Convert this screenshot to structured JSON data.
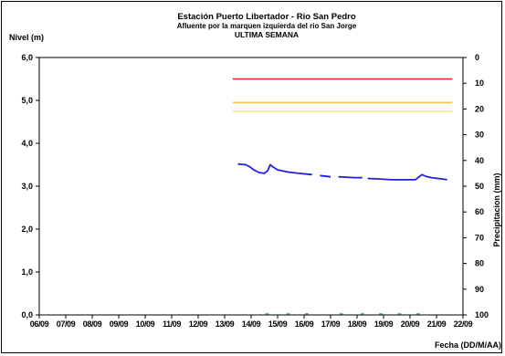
{
  "chart_data": {
    "type": "line",
    "title": "Estación Puerto Libertador - Rio San Pedro",
    "subtitle": "Afluente por la marquen izquierda del rio San Jorge",
    "subtitle2": "ULTIMA SEMANA",
    "ylabel": "Nivel (m)",
    "y2label": "Precipitacion (mm)",
    "xlabel": "Fecha (DD/M/AA)",
    "ylim": [
      0,
      6
    ],
    "y2lim": [
      0,
      100
    ],
    "yticks": [
      "0,0",
      "1,0",
      "2,0",
      "3,0",
      "4,0",
      "5,0",
      "6,0"
    ],
    "y2ticks": [
      "0",
      "10",
      "20",
      "30",
      "40",
      "50",
      "60",
      "70",
      "80",
      "90",
      "100"
    ],
    "xticks": [
      "06/09",
      "07/09",
      "08/09",
      "09/09",
      "10/09",
      "11/09",
      "12/09",
      "13/09",
      "14/09",
      "15/09",
      "16/09",
      "17/09",
      "18/09",
      "19/09",
      "20/09",
      "21/09",
      "22/09"
    ],
    "xlim": [
      0,
      16
    ],
    "thresholds": [
      {
        "level": 5.5,
        "color": "#e8231f",
        "x": [
          7.3,
          15.6
        ]
      },
      {
        "level": 4.95,
        "color": "#f6c744",
        "x": [
          7.3,
          15.6
        ]
      },
      {
        "level": 4.75,
        "color": "#f1ee6a",
        "x": [
          7.3,
          15.6
        ]
      }
    ],
    "series": [
      {
        "color": "#1f1fe0",
        "segments": [
          [
            [
              7.5,
              3.52
            ],
            [
              7.8,
              3.5
            ],
            [
              7.95,
              3.45
            ],
            [
              8.1,
              3.38
            ],
            [
              8.3,
              3.32
            ],
            [
              8.5,
              3.3
            ],
            [
              8.62,
              3.36
            ],
            [
              8.72,
              3.5
            ],
            [
              8.8,
              3.46
            ],
            [
              9.0,
              3.38
            ],
            [
              9.4,
              3.33
            ],
            [
              9.8,
              3.3
            ],
            [
              10.3,
              3.27
            ]
          ],
          [
            [
              10.6,
              3.25
            ],
            [
              11.0,
              3.22
            ]
          ],
          [
            [
              11.3,
              3.22
            ],
            [
              11.9,
              3.2
            ],
            [
              12.2,
              3.2
            ]
          ],
          [
            [
              12.4,
              3.18
            ],
            [
              12.8,
              3.17
            ],
            [
              13.3,
              3.15
            ],
            [
              13.9,
              3.15
            ],
            [
              14.2,
              3.15
            ],
            [
              14.45,
              3.27
            ],
            [
              14.6,
              3.23
            ],
            [
              14.8,
              3.2
            ],
            [
              15.2,
              3.17
            ],
            [
              15.4,
              3.15
            ]
          ]
        ]
      }
    ],
    "rain_marks": [
      8.6,
      9.4,
      10.1,
      11.4,
      12.2,
      12.9,
      13.6,
      14.3
    ],
    "grid": false,
    "legend": "none"
  }
}
